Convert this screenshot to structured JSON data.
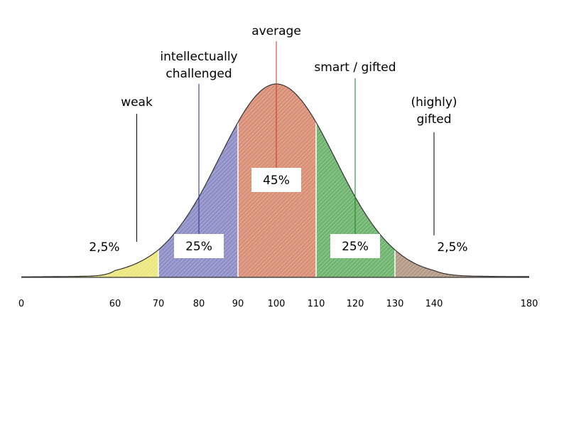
{
  "chart_data": {
    "type": "area",
    "title": "",
    "xlabel": "",
    "ylabel": "",
    "curve": {
      "mean": 100,
      "sd": 15,
      "x_start": 0,
      "x_end": 180
    },
    "x_ticks": [
      0,
      60,
      70,
      80,
      90,
      100,
      110,
      120,
      130,
      140,
      180
    ],
    "bands": [
      {
        "from": 0,
        "to": 70,
        "color": "#ece77e",
        "label": "2,5%"
      },
      {
        "from": 70,
        "to": 90,
        "color": "#8f8fc8",
        "label": "25%"
      },
      {
        "from": 90,
        "to": 110,
        "color": "#d98f76",
        "label": "45%"
      },
      {
        "from": 110,
        "to": 130,
        "color": "#6fb56f",
        "label": "25%"
      },
      {
        "from": 130,
        "to": 180,
        "color": "#b59b86",
        "label": "2,5%"
      }
    ],
    "categories": [
      {
        "lines": [
          "weak"
        ],
        "x": 65,
        "line_color": "#000000"
      },
      {
        "lines": [
          "intellectually",
          "challenged"
        ],
        "x": 80,
        "line_color": "#2a2a88"
      },
      {
        "lines": [
          "average"
        ],
        "x": 100,
        "line_color": "#c0392b"
      },
      {
        "lines": [
          "smart / gifted"
        ],
        "x": 120,
        "line_color": "#1e7d1e"
      },
      {
        "lines": [
          "(highly)",
          "gifted"
        ],
        "x": 140,
        "line_color": "#000000"
      }
    ]
  }
}
